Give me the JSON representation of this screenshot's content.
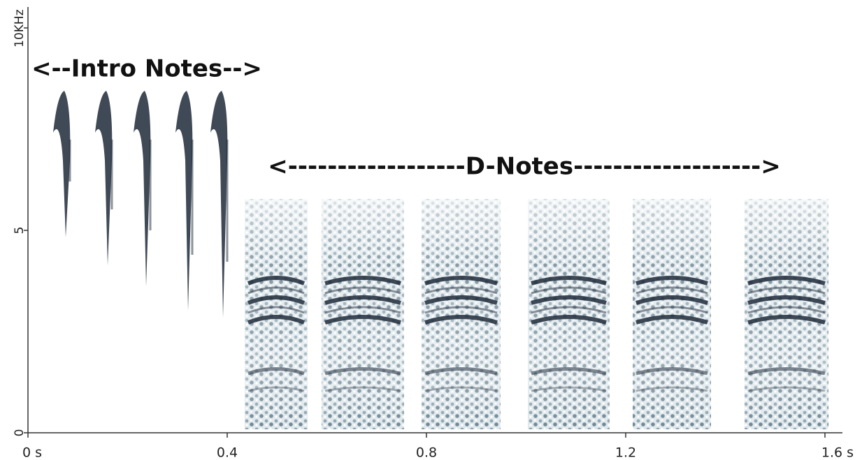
{
  "chart_data": {
    "type": "spectrogram",
    "annotations": [
      "<--Intro Notes-->",
      "<------------------D-Notes------------------->"
    ],
    "xlim": [
      0,
      1.63
    ],
    "xticks": [
      {
        "value": 0,
        "label": "0 s"
      },
      0.4,
      0.8,
      1.2,
      {
        "value": 1.6,
        "label": "1.6 s"
      }
    ],
    "ylim": [
      0,
      10
    ],
    "yticks": [
      0,
      5,
      {
        "value": 10,
        "label": "10KHz"
      }
    ],
    "color": "#1e2a3a"
  }
}
